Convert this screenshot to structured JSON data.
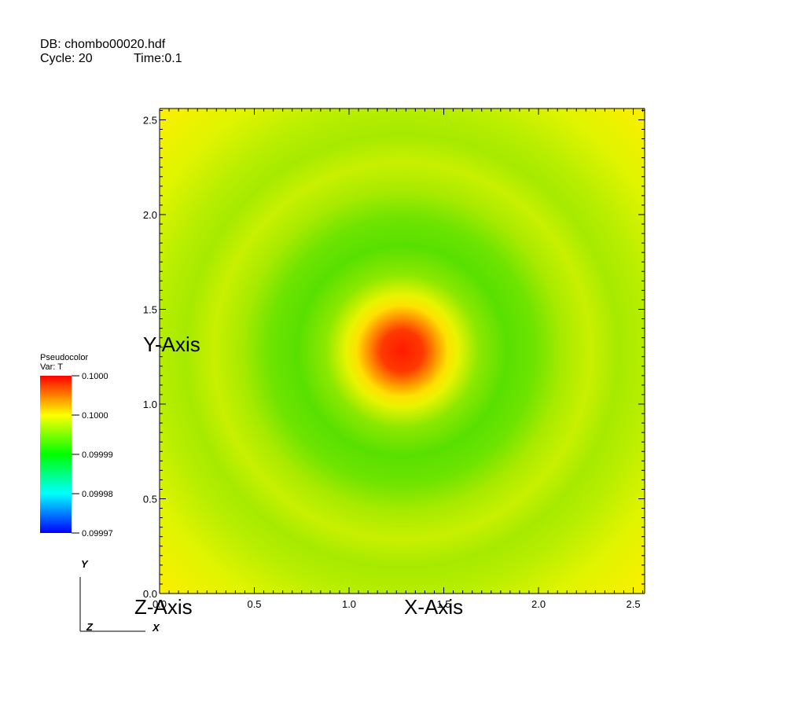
{
  "header": {
    "db": "DB: chombo00020.hdf",
    "cycle": "Cycle: 20",
    "time": "Time:0.1"
  },
  "legend": {
    "title": "Pseudocolor",
    "var": "Var: T",
    "labels": [
      "0.1000",
      "0.1000",
      "0.09999",
      "0.09998",
      "0.09997"
    ],
    "colors": [
      "#ff0000",
      "#ffff00",
      "#00ff00",
      "#00ffff",
      "#0000ff"
    ]
  },
  "triad": {
    "y": "Y",
    "z": "Z",
    "x": "X"
  },
  "chart_data": {
    "type": "heatmap",
    "variable": "T",
    "xlabel": "X-Axis",
    "ylabel": "Y-Axis",
    "zlabel": "Z-Axis",
    "xlim": [
      0.0,
      2.56
    ],
    "ylim": [
      0.0,
      2.56
    ],
    "x_ticks": [
      "0.0",
      "0.5",
      "1.0",
      "1.5",
      "2.0",
      "2.5"
    ],
    "y_ticks": [
      "0.0",
      "0.5",
      "1.0",
      "1.5",
      "2.0",
      "2.5"
    ],
    "value_range": [
      0.09997,
      0.1
    ],
    "peak_center": [
      1.28,
      1.28
    ],
    "colormap": "hot_desaturated",
    "description_values": {
      "center_value": 0.1,
      "ring_value": 0.09999,
      "background_value": 0.099995
    }
  }
}
